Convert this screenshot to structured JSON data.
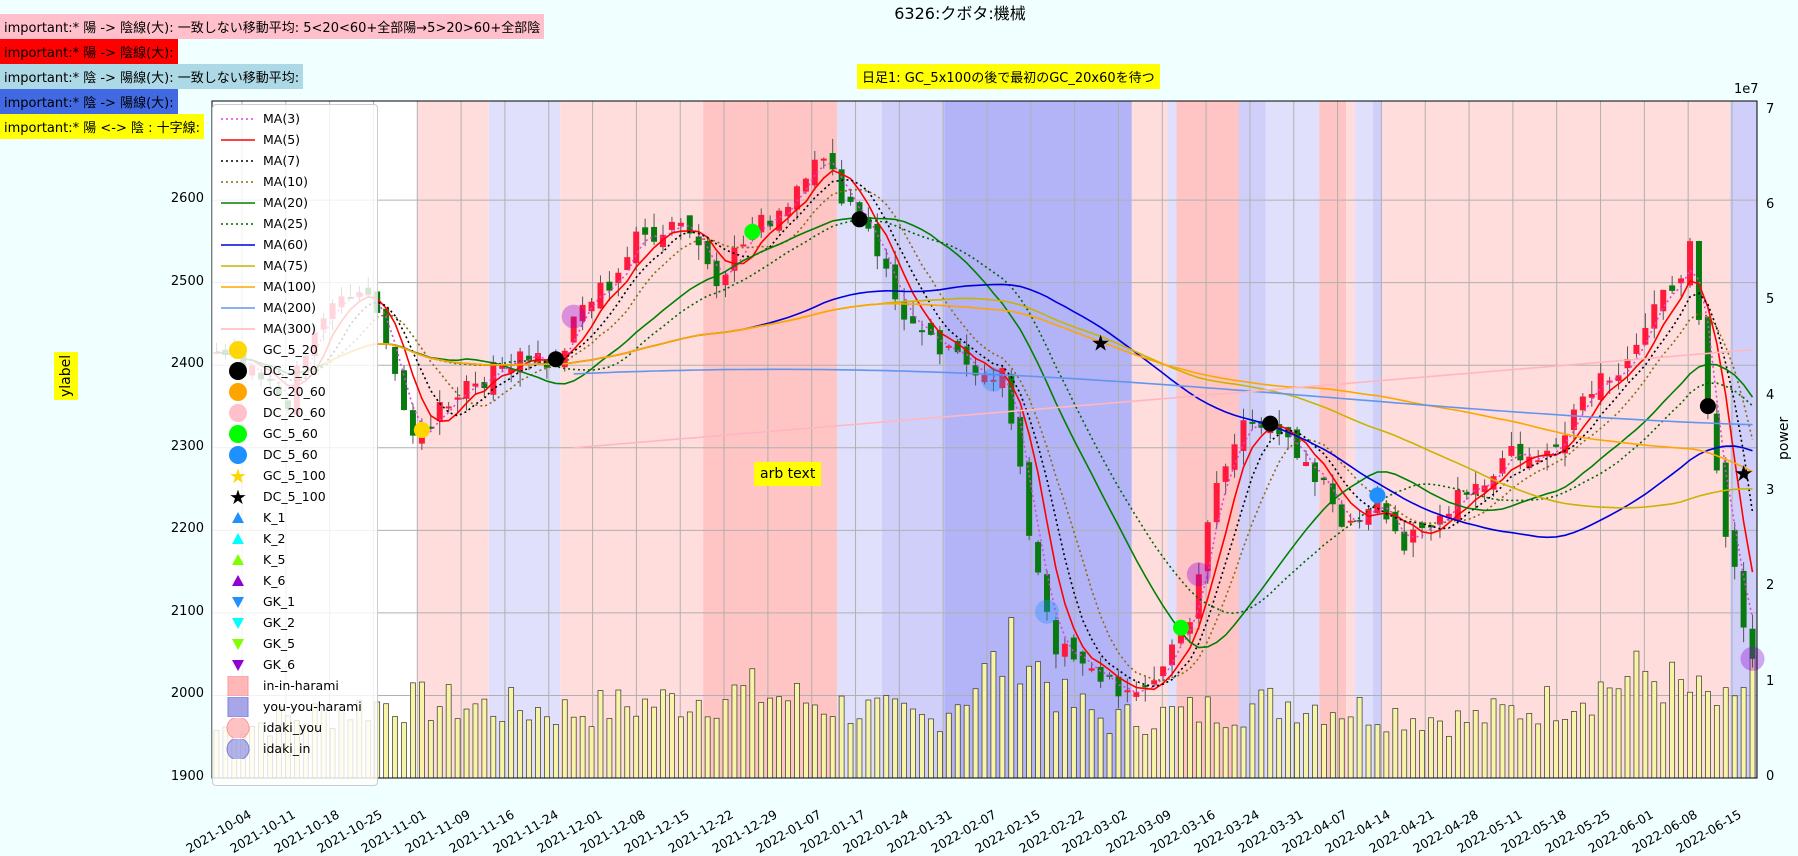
{
  "chart_data": {
    "type": "candlestick",
    "title": "6326:クボタ:機械",
    "ylabel_left": "ylabel",
    "ylabel_right": "power",
    "power_multiplier": "1e7",
    "left_ylim": [
      1900,
      2720
    ],
    "right_ylim": [
      0,
      7.1
    ],
    "left_yticks": [
      1900,
      2000,
      2100,
      2200,
      2300,
      2400,
      2500,
      2600
    ],
    "right_yticks": [
      0,
      1,
      2,
      3,
      4,
      5,
      6,
      7
    ],
    "x_ticks": [
      "2021-10-04",
      "2021-10-11",
      "2021-10-18",
      "2021-10-25",
      "2021-11-01",
      "2021-11-09",
      "2021-11-16",
      "2021-11-24",
      "2021-12-01",
      "2021-12-08",
      "2021-12-15",
      "2021-12-22",
      "2021-12-29",
      "2022-01-07",
      "2022-01-17",
      "2022-01-24",
      "2022-01-31",
      "2022-02-07",
      "2022-02-15",
      "2022-02-22",
      "2022-03-02",
      "2022-03-09",
      "2022-03-16",
      "2022-03-24",
      "2022-03-31",
      "2022-04-07",
      "2022-04-14",
      "2022-04-21",
      "2022-04-28",
      "2022-05-11",
      "2022-05-18",
      "2022-05-25",
      "2022-06-01",
      "2022-06-08",
      "2022-06-15"
    ],
    "close_anchors": [
      [
        0,
        2410
      ],
      [
        8,
        2360
      ],
      [
        12,
        2460
      ],
      [
        16,
        2490
      ],
      [
        19,
        2440
      ],
      [
        22,
        2300
      ],
      [
        25,
        2350
      ],
      [
        28,
        2380
      ],
      [
        31,
        2390
      ],
      [
        34,
        2420
      ],
      [
        38,
        2400
      ],
      [
        41,
        2470
      ],
      [
        44,
        2500
      ],
      [
        47,
        2550
      ],
      [
        52,
        2580
      ],
      [
        56,
        2510
      ],
      [
        60,
        2560
      ],
      [
        64,
        2600
      ],
      [
        67,
        2660
      ],
      [
        70,
        2610
      ],
      [
        73,
        2570
      ],
      [
        76,
        2480
      ],
      [
        79,
        2430
      ],
      [
        82,
        2410
      ],
      [
        85,
        2400
      ],
      [
        88,
        2390
      ],
      [
        91,
        2200
      ],
      [
        94,
        2060
      ],
      [
        97,
        2030
      ],
      [
        100,
        2020
      ],
      [
        103,
        1990
      ],
      [
        106,
        2040
      ],
      [
        109,
        2100
      ],
      [
        112,
        2250
      ],
      [
        115,
        2330
      ],
      [
        118,
        2340
      ],
      [
        121,
        2280
      ],
      [
        124,
        2250
      ],
      [
        127,
        2200
      ],
      [
        130,
        2250
      ],
      [
        133,
        2180
      ],
      [
        136,
        2200
      ],
      [
        139,
        2250
      ],
      [
        142,
        2260
      ],
      [
        145,
        2300
      ],
      [
        148,
        2280
      ],
      [
        151,
        2330
      ],
      [
        154,
        2380
      ],
      [
        157,
        2400
      ],
      [
        160,
        2440
      ],
      [
        163,
        2500
      ],
      [
        165,
        2540
      ],
      [
        167,
        2340
      ],
      [
        169,
        2190
      ],
      [
        172,
        2050
      ]
    ],
    "volume_anchors": [
      [
        0,
        0.5
      ],
      [
        20,
        0.8
      ],
      [
        40,
        0.7
      ],
      [
        60,
        0.9
      ],
      [
        80,
        0.6
      ],
      [
        90,
        1.4
      ],
      [
        95,
        0.8
      ],
      [
        100,
        0.6
      ],
      [
        110,
        0.7
      ],
      [
        120,
        0.8
      ],
      [
        130,
        0.7
      ],
      [
        140,
        0.6
      ],
      [
        150,
        0.8
      ],
      [
        160,
        1.1
      ],
      [
        170,
        0.7
      ],
      [
        172,
        1.3
      ]
    ],
    "series": [
      {
        "name": "MA(3)",
        "color": "#e040e0",
        "style": "dotted"
      },
      {
        "name": "MA(5)",
        "color": "#ff0000",
        "style": "solid"
      },
      {
        "name": "MA(7)",
        "color": "#000000",
        "style": "dotted"
      },
      {
        "name": "MA(10)",
        "color": "#8b6914",
        "style": "dotted"
      },
      {
        "name": "MA(20)",
        "color": "#008000",
        "style": "solid"
      },
      {
        "name": "MA(25)",
        "color": "#006400",
        "style": "dotted"
      },
      {
        "name": "MA(60)",
        "color": "#0000dd",
        "style": "solid"
      },
      {
        "name": "MA(75)",
        "color": "#c8b400",
        "style": "solid"
      },
      {
        "name": "MA(100)",
        "color": "#ffa500",
        "style": "solid"
      },
      {
        "name": "MA(200)",
        "color": "#6495ed",
        "style": "solid"
      },
      {
        "name": "MA(300)",
        "color": "#ffb6c1",
        "style": "solid"
      }
    ],
    "annotations": [
      {
        "text": "arb text"
      },
      {
        "text": "日足1: GC_5x100の後で最初のGC_20x60を待つ"
      }
    ]
  },
  "header_notes": [
    {
      "text": "important:* 陽 -> 陰線(大): 一致しない移動平均: 5<20<60+全部陽→5>20>60+全部陰",
      "bg": "#ffc0cb"
    },
    {
      "text": "important:* 陽 -> 陰線(大):",
      "bg": "#ff0000"
    },
    {
      "text": "important:* 陰 -> 陽線(大): 一致しない移動平均:",
      "bg": "#add8e6"
    },
    {
      "text": "important:* 陰 -> 陽線(大):",
      "bg": "#4169e1"
    },
    {
      "text": "important:* 陽 <-> 陰 : 十字線:",
      "bg": "#ffff00"
    }
  ],
  "legend": [
    {
      "label": "MA(3)",
      "kind": "line",
      "color": "#e040e0",
      "style": "dotted"
    },
    {
      "label": "MA(5)",
      "kind": "line",
      "color": "#ff0000",
      "style": "solid"
    },
    {
      "label": "MA(7)",
      "kind": "line",
      "color": "#000000",
      "style": "dotted"
    },
    {
      "label": "MA(10)",
      "kind": "line",
      "color": "#8b6914",
      "style": "dotted"
    },
    {
      "label": "MA(20)",
      "kind": "line",
      "color": "#008000",
      "style": "solid"
    },
    {
      "label": "MA(25)",
      "kind": "line",
      "color": "#006400",
      "style": "dotted"
    },
    {
      "label": "MA(60)",
      "kind": "line",
      "color": "#0000dd",
      "style": "solid"
    },
    {
      "label": "MA(75)",
      "kind": "line",
      "color": "#c8b400",
      "style": "solid"
    },
    {
      "label": "MA(100)",
      "kind": "line",
      "color": "#ffa500",
      "style": "solid"
    },
    {
      "label": "MA(200)",
      "kind": "line",
      "color": "#6495ed",
      "style": "solid"
    },
    {
      "label": "MA(300)",
      "kind": "line",
      "color": "#ffb6c1",
      "style": "solid"
    },
    {
      "label": "GC_5_20",
      "kind": "circle",
      "color": "#ffd700"
    },
    {
      "label": "DC_5_20",
      "kind": "circle",
      "color": "#000000"
    },
    {
      "label": "GC_20_60",
      "kind": "circle",
      "color": "#ffa500"
    },
    {
      "label": "DC_20_60",
      "kind": "circle",
      "color": "#ffc0cb"
    },
    {
      "label": "GC_5_60",
      "kind": "circle",
      "color": "#00ff00"
    },
    {
      "label": "DC_5_60",
      "kind": "circle",
      "color": "#1e90ff"
    },
    {
      "label": "GC_5_100",
      "kind": "star",
      "color": "#ffd700"
    },
    {
      "label": "DC_5_100",
      "kind": "star",
      "color": "#000000"
    },
    {
      "label": "K_1",
      "kind": "tri-up",
      "color": "#1e90ff"
    },
    {
      "label": "K_2",
      "kind": "tri-up",
      "color": "#00ffff"
    },
    {
      "label": "K_5",
      "kind": "tri-up",
      "color": "#7fff00"
    },
    {
      "label": "K_6",
      "kind": "tri-up",
      "color": "#9400d3"
    },
    {
      "label": "GK_1",
      "kind": "tri-down",
      "color": "#1e90ff"
    },
    {
      "label": "GK_2",
      "kind": "tri-down",
      "color": "#00ffff"
    },
    {
      "label": "GK_5",
      "kind": "tri-down",
      "color": "#7fff00"
    },
    {
      "label": "GK_6",
      "kind": "tri-down",
      "color": "#9400d3"
    },
    {
      "label": "in-in-harami",
      "kind": "square",
      "color": "#ff9999"
    },
    {
      "label": "you-you-harami",
      "kind": "square",
      "color": "#8080e0"
    },
    {
      "label": "idaki_you",
      "kind": "bigcircle",
      "color": "#ff9999"
    },
    {
      "label": "idaki_in",
      "kind": "bigcircle",
      "color": "#8080e0"
    }
  ]
}
